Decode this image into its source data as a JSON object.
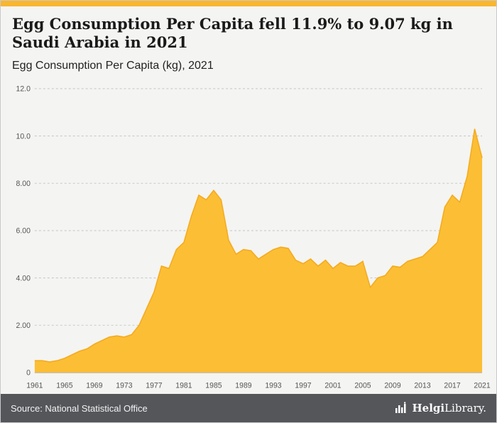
{
  "accent_color": "#f9b62f",
  "header": {
    "title": "Egg Consumption Per Capita fell 11.9% to 9.07 kg in Saudi Arabia in 2021",
    "subtitle": "Egg Consumption Per Capita (kg), 2021"
  },
  "footer": {
    "source": "Source: National Statistical Office",
    "brand_bold": "Helgi",
    "brand_rest": "Library.",
    "brand_icon": "bar-chart-logo"
  },
  "chart_data": {
    "type": "area",
    "title": "Egg Consumption Per Capita (kg), Saudi Arabia, 1961-2021",
    "xlabel": "",
    "ylabel": "",
    "ylim": [
      0,
      12
    ],
    "yticks": [
      0,
      2,
      4,
      6,
      8,
      10,
      12
    ],
    "ytick_labels": [
      "0",
      "2.00",
      "4.00",
      "6.00",
      "8.00",
      "10.0",
      "12.0"
    ],
    "xticks": [
      1961,
      1965,
      1969,
      1973,
      1977,
      1981,
      1985,
      1989,
      1993,
      1997,
      2001,
      2005,
      2009,
      2013,
      2017,
      2021
    ],
    "grid": "horizontal-dashed",
    "legend": "none",
    "fill_color": "#fcbe35",
    "line_color": "#f4ab1c",
    "x": [
      1961,
      1962,
      1963,
      1964,
      1965,
      1966,
      1967,
      1968,
      1969,
      1970,
      1971,
      1972,
      1973,
      1974,
      1975,
      1976,
      1977,
      1978,
      1979,
      1980,
      1981,
      1982,
      1983,
      1984,
      1985,
      1986,
      1987,
      1988,
      1989,
      1990,
      1991,
      1992,
      1993,
      1994,
      1995,
      1996,
      1997,
      1998,
      1999,
      2000,
      2001,
      2002,
      2003,
      2004,
      2005,
      2006,
      2007,
      2008,
      2009,
      2010,
      2011,
      2012,
      2013,
      2014,
      2015,
      2016,
      2017,
      2018,
      2019,
      2020,
      2021
    ],
    "values": [
      0.5,
      0.5,
      0.45,
      0.5,
      0.6,
      0.75,
      0.9,
      1.0,
      1.2,
      1.35,
      1.5,
      1.55,
      1.5,
      1.6,
      2.0,
      2.7,
      3.4,
      4.5,
      4.4,
      5.2,
      5.5,
      6.6,
      7.5,
      7.3,
      7.7,
      7.3,
      5.6,
      5.0,
      5.2,
      5.15,
      4.8,
      5.0,
      5.2,
      5.3,
      5.25,
      4.75,
      4.6,
      4.8,
      4.5,
      4.75,
      4.4,
      4.65,
      4.5,
      4.5,
      4.7,
      3.6,
      4.0,
      4.1,
      4.5,
      4.45,
      4.7,
      4.8,
      4.9,
      5.2,
      5.5,
      7.0,
      7.5,
      7.2,
      8.3,
      10.3,
      9.07
    ]
  }
}
